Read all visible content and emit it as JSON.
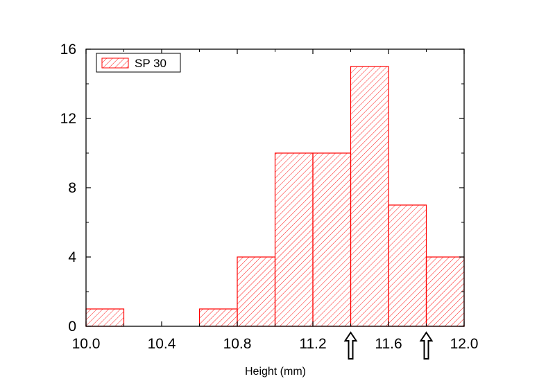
{
  "chart_data": {
    "type": "bar",
    "bins": [
      {
        "x0": 10.0,
        "x1": 10.2,
        "count": 1
      },
      {
        "x0": 10.2,
        "x1": 10.4,
        "count": 0
      },
      {
        "x0": 10.4,
        "x1": 10.6,
        "count": 0
      },
      {
        "x0": 10.6,
        "x1": 10.8,
        "count": 1
      },
      {
        "x0": 10.8,
        "x1": 11.0,
        "count": 4
      },
      {
        "x0": 11.0,
        "x1": 11.2,
        "count": 10
      },
      {
        "x0": 11.2,
        "x1": 11.4,
        "count": 10
      },
      {
        "x0": 11.4,
        "x1": 11.6,
        "count": 15
      },
      {
        "x0": 11.6,
        "x1": 11.8,
        "count": 7
      },
      {
        "x0": 11.8,
        "x1": 12.0,
        "count": 4
      }
    ],
    "title": "",
    "xlabel": "Height (mm)",
    "ylabel": "",
    "xlim": [
      10.0,
      12.0
    ],
    "ylim": [
      0,
      16
    ],
    "x_ticks": [
      "10.0",
      "10.4",
      "10.8",
      "11.2",
      "11.6",
      "12.0"
    ],
    "y_ticks": [
      "0",
      "4",
      "8",
      "12",
      "16"
    ],
    "legend": {
      "label": "SP 30",
      "placement": "top-left"
    },
    "bar_color": "#ff0000",
    "bar_fill": "diagonal-hatch",
    "grid": false,
    "markers": [
      {
        "type": "up-arrow",
        "x": 11.4
      },
      {
        "type": "up-arrow",
        "x": 11.8
      }
    ]
  }
}
